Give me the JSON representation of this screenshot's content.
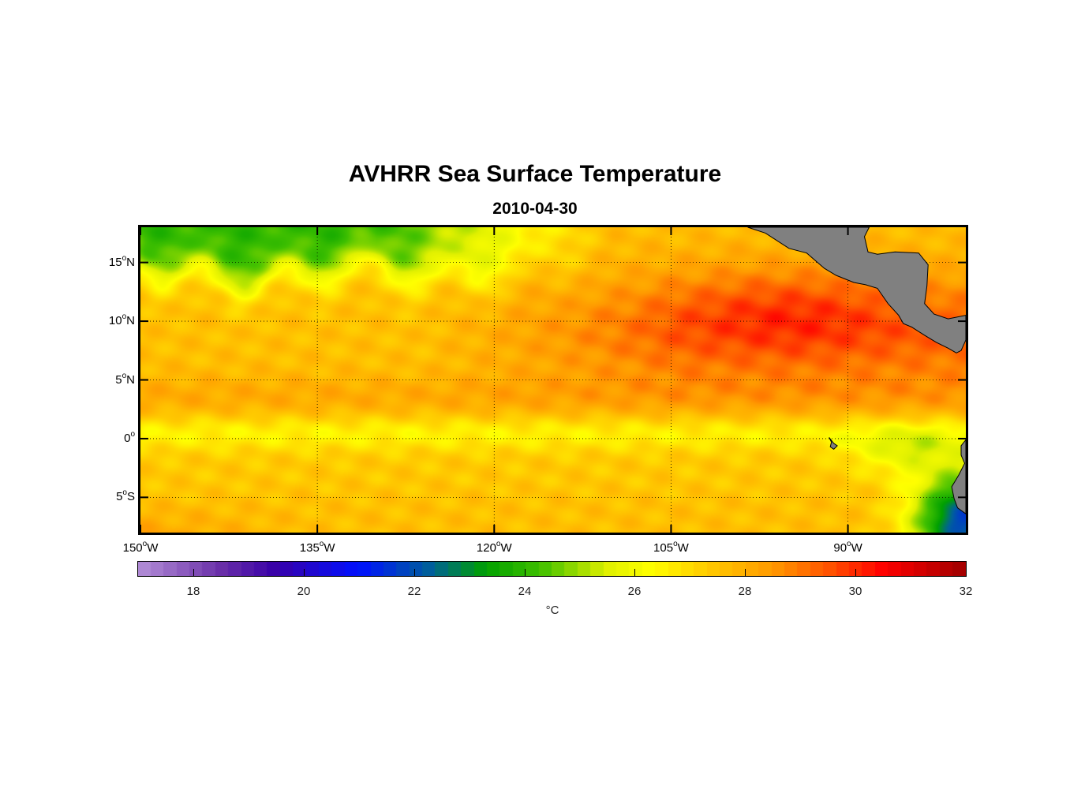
{
  "title": "AVHRR Sea Surface Temperature",
  "subtitle": "2010-04-30",
  "map": {
    "lon_range": [
      -150,
      -80
    ],
    "lat_range": [
      -8,
      18
    ],
    "lat_ticks": [
      {
        "value": 15,
        "num": "15",
        "hemi": "N"
      },
      {
        "value": 10,
        "num": "10",
        "hemi": "N"
      },
      {
        "value": 5,
        "num": "5",
        "hemi": "N"
      },
      {
        "value": 0,
        "num": "0",
        "hemi": ""
      },
      {
        "value": -5,
        "num": "5",
        "hemi": "S"
      }
    ],
    "lon_ticks": [
      {
        "value": -150,
        "num": "150",
        "hemi": "W"
      },
      {
        "value": -135,
        "num": "135",
        "hemi": "W"
      },
      {
        "value": -120,
        "num": "120",
        "hemi": "W"
      },
      {
        "value": -105,
        "num": "105",
        "hemi": "W"
      },
      {
        "value": -90,
        "num": "90",
        "hemi": "W"
      }
    ],
    "land_color": "#808080",
    "degree_symbol": "o"
  },
  "colorbar": {
    "min": 17,
    "max": 32,
    "ticks": [
      "18",
      "20",
      "22",
      "24",
      "26",
      "28",
      "30",
      "32"
    ],
    "unit": "°C",
    "stops": [
      {
        "v": 17,
        "c": "#b48fd8"
      },
      {
        "v": 18.5,
        "c": "#6a2fa8"
      },
      {
        "v": 19.5,
        "c": "#3800a8"
      },
      {
        "v": 21,
        "c": "#0010ff"
      },
      {
        "v": 22.3,
        "c": "#00609a"
      },
      {
        "v": 23.3,
        "c": "#00a000"
      },
      {
        "v": 24.3,
        "c": "#40c000"
      },
      {
        "v": 25.5,
        "c": "#e0f000"
      },
      {
        "v": 26.3,
        "c": "#ffff00"
      },
      {
        "v": 27.3,
        "c": "#ffcc00"
      },
      {
        "v": 28.5,
        "c": "#ff9900"
      },
      {
        "v": 29.5,
        "c": "#ff5500"
      },
      {
        "v": 30.5,
        "c": "#ff0000"
      },
      {
        "v": 32,
        "c": "#a00000"
      }
    ]
  }
}
